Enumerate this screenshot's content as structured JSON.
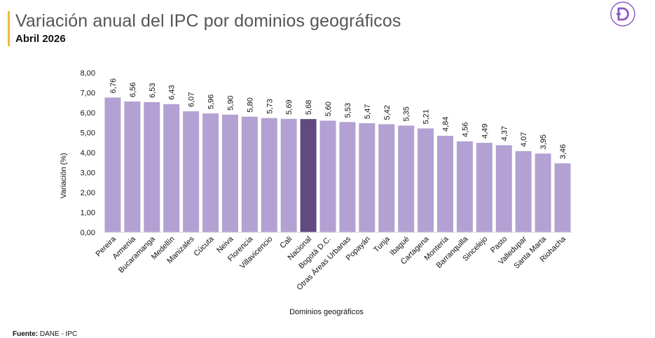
{
  "header": {
    "title": "Variación anual del IPC por dominios geográficos",
    "subtitle": "Abril 2026",
    "logo_icon": "d-logo-icon"
  },
  "footer": {
    "source_label": "Fuente:",
    "source_value": "DANE - IPC"
  },
  "colors": {
    "bar": "#b3a1d3",
    "highlight": "#614a7f",
    "axis": "#d9d9d9",
    "accent": "#f0b93a",
    "logo": "#8a57c4"
  },
  "chart_data": {
    "type": "bar",
    "xlabel": "Dominios geográficos",
    "ylabel": "Variación (%)",
    "ylim": [
      0,
      8
    ],
    "yticks": [
      "0,00",
      "1,00",
      "2,00",
      "3,00",
      "4,00",
      "5,00",
      "6,00",
      "7,00",
      "8,00"
    ],
    "grid": false,
    "highlight_category": "Nacional",
    "categories": [
      "Pereira",
      "Armenia",
      "Bucaramanga",
      "Medellín",
      "Manizales",
      "Cúcuta",
      "Neiva",
      "Florencia",
      "Villavicencio",
      "Cali",
      "Nacional",
      "Bogotá D.C.",
      "Otras Áreas Urbanas",
      "Popayán",
      "Tunja",
      "Ibagué",
      "Cartagena",
      "Montería",
      "Barranquilla",
      "Sincelejo",
      "Pasto",
      "Valledupar",
      "Santa Marta",
      "Riohacha"
    ],
    "values": [
      6.76,
      6.56,
      6.53,
      6.43,
      6.07,
      5.96,
      5.9,
      5.8,
      5.73,
      5.69,
      5.68,
      5.6,
      5.53,
      5.47,
      5.42,
      5.35,
      5.21,
      4.84,
      4.56,
      4.49,
      4.37,
      4.07,
      3.95,
      3.46
    ],
    "value_labels": [
      "6,76",
      "6,56",
      "6,53",
      "6,43",
      "6,07",
      "5,96",
      "5,90",
      "5,80",
      "5,73",
      "5,69",
      "5,68",
      "5,60",
      "5,53",
      "5,47",
      "5,42",
      "5,35",
      "5,21",
      "4,84",
      "4,56",
      "4,49",
      "4,37",
      "4,07",
      "3,95",
      "3,46"
    ]
  }
}
